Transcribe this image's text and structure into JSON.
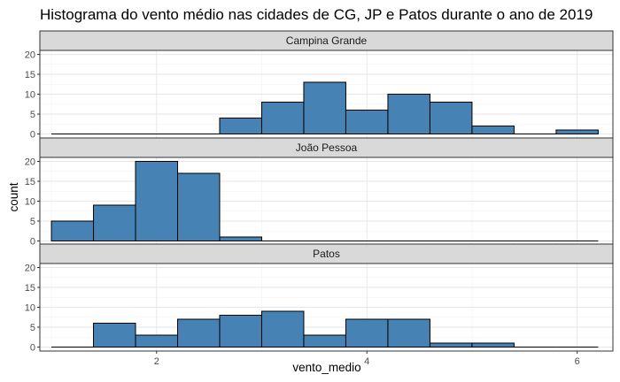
{
  "chart_data": {
    "type": "bar",
    "title": "Histograma do vento médio nas cidades de CG, JP e Patos durante o ano de 2019",
    "xlabel": "vento_medio",
    "ylabel": "count",
    "xlim": [
      0.89,
      6.34
    ],
    "ylim": [
      -1,
      21
    ],
    "x_ticks": [
      2,
      4,
      6
    ],
    "x_tick_labels": [
      "2",
      "4",
      "6"
    ],
    "y_ticks": [
      0,
      5,
      10,
      15,
      20
    ],
    "y_tick_labels": [
      "0",
      "5",
      "10",
      "15",
      "20"
    ],
    "bin_edges": [
      1.0,
      1.4,
      1.8,
      2.2,
      2.6,
      3.0,
      3.4,
      3.8,
      4.2,
      4.6,
      5.0,
      5.4,
      5.8,
      6.2
    ],
    "grid": true,
    "fill_color": "#4682B4",
    "outline_color": "#000000",
    "panel_strip_color": "#D9D9D9",
    "panels": [
      {
        "name": "Campina Grande",
        "values": [
          0,
          0,
          0,
          0,
          4,
          8,
          13,
          6,
          10,
          8,
          2,
          0,
          1
        ]
      },
      {
        "name": "João Pessoa",
        "values": [
          5,
          9,
          20,
          17,
          1,
          0,
          0,
          0,
          0,
          0,
          0,
          0,
          0
        ]
      },
      {
        "name": "Patos",
        "values": [
          0,
          6,
          3,
          7,
          8,
          9,
          3,
          7,
          7,
          1,
          1,
          0,
          0
        ]
      }
    ]
  }
}
